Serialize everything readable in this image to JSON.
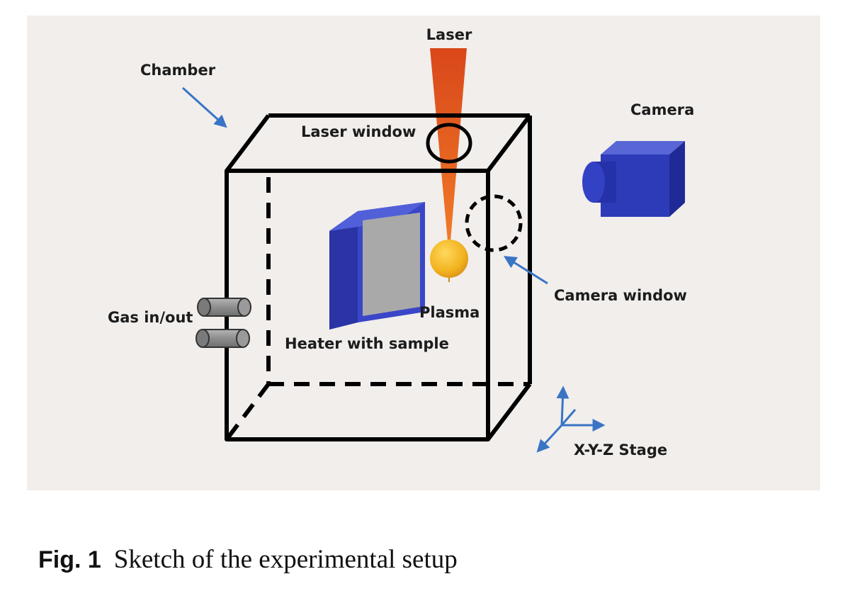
{
  "diagram": {
    "labels": {
      "laser": "Laser",
      "chamber": "Chamber",
      "camera": "Camera",
      "laser_window": "Laser window",
      "camera_window": "Camera window",
      "plasma": "Plasma",
      "gas": "Gas in/out",
      "heater": "Heater with sample",
      "stage": "X-Y-Z Stage"
    },
    "colors": {
      "panel_background": "#f1eeec",
      "chamber_lines": "#000000",
      "heater_frame": "#3a46c8",
      "heater_sample": "#a9a9a9",
      "laser_beam": "#e8561e",
      "plasma": "#f2b21f",
      "camera_body": "#2d3bb8",
      "arrows": "#3a74c4",
      "gas_ports": "#8a8a8a"
    }
  },
  "caption": {
    "prefix": "Fig. 1",
    "text": "Sketch of the experimental setup"
  }
}
